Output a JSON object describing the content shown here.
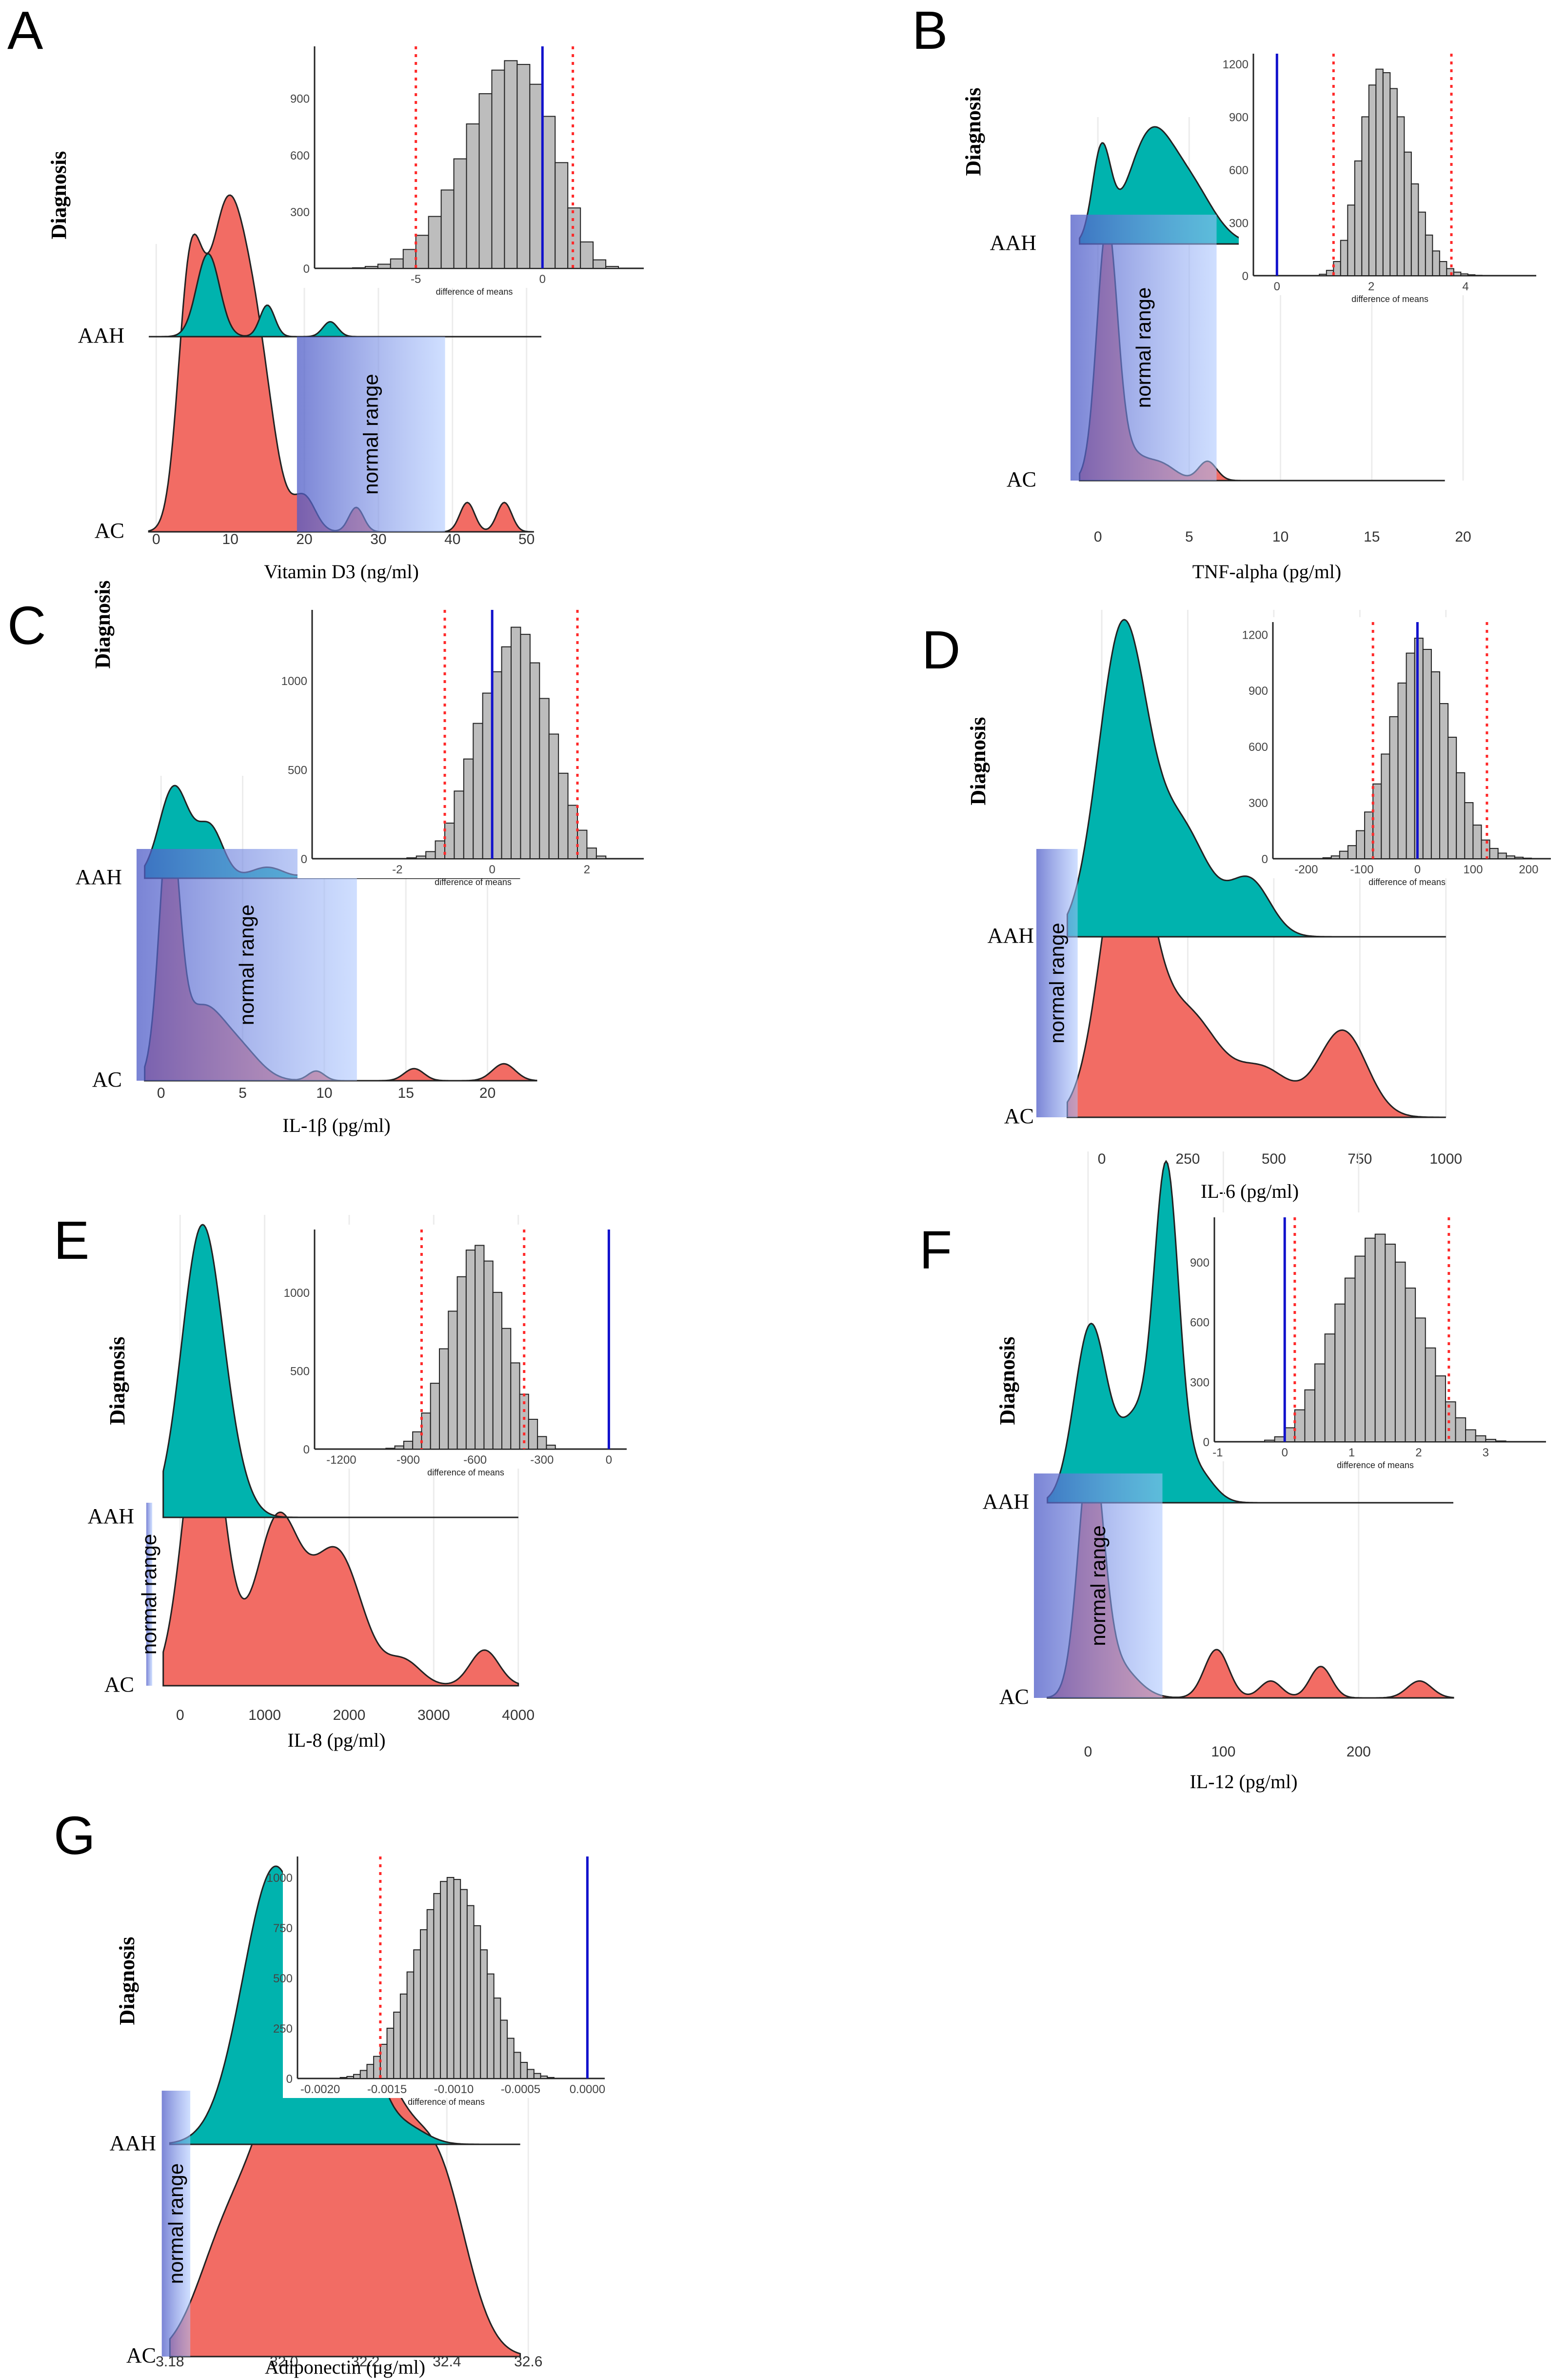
{
  "figure": {
    "y_axis_title": "Diagnosis",
    "group_labels": [
      "AAH",
      "AC"
    ],
    "inset_xlabel": "difference of means",
    "shaded_label": "normal range"
  },
  "colors": {
    "aah_fill": "#00b3ae",
    "ac_fill": "#f26c64",
    "normal_range": "#7f8fe0",
    "observed_line": "#1111cc",
    "ci_line": "#ff2a2a",
    "hist_fill": "#bdbdbd"
  },
  "chart_data": [
    {
      "id": "A",
      "panel_label": "A",
      "type": "area",
      "xlabel": "Vitamin D3 (ng/ml)",
      "xlim": [
        -2,
        52
      ],
      "x_ticks": [
        0,
        10,
        20,
        30,
        40,
        50
      ],
      "normal_range": [
        19,
        39
      ],
      "series": [
        {
          "name": "AAH",
          "bumps": [
            [
              7,
              1.55,
              1.0
            ],
            [
              15,
              1.0,
              0.38
            ],
            [
              23.5,
              1.0,
              0.18
            ]
          ],
          "range": [
            -1,
            52
          ]
        },
        {
          "name": "AC",
          "bumps": [
            [
              4.5,
              1.6,
              0.45
            ],
            [
              9.5,
              2.8,
              0.65
            ],
            [
              14,
              2.2,
              0.25
            ],
            [
              20,
              1.5,
              0.07
            ],
            [
              27,
              1.0,
              0.05
            ],
            [
              42,
              1.0,
              0.06
            ],
            [
              47,
              1.0,
              0.06
            ]
          ],
          "range": [
            -1,
            51
          ]
        }
      ],
      "inset": {
        "type": "histogram",
        "xlabel": "difference of means",
        "x_ticks": [
          -5,
          0
        ],
        "y_ticks": [
          0,
          300,
          600,
          900
        ],
        "xlim": [
          -9,
          4
        ],
        "ylim": [
          0,
          1150
        ],
        "bins": [
          -7.5,
          -7.0,
          -6.5,
          -6.0,
          -5.5,
          -5.0,
          -4.5,
          -4.0,
          -3.5,
          -3.0,
          -2.5,
          -2.0,
          -1.5,
          -1.0,
          -0.5,
          0.0,
          0.5,
          1.0,
          1.5,
          2.0,
          2.5
        ],
        "counts": [
          3,
          10,
          22,
          50,
          100,
          175,
          275,
          415,
          580,
          765,
          925,
          1050,
          1100,
          1080,
          975,
          805,
          560,
          320,
          140,
          45,
          10
        ],
        "bin_width": 0.5,
        "ci": [
          -5,
          1.2
        ],
        "observed": 0
      }
    },
    {
      "id": "B",
      "panel_label": "B",
      "type": "area",
      "xlabel": "TNF-alpha (pg/ml)",
      "xlim": [
        -1.5,
        20
      ],
      "x_ticks": [
        0,
        5,
        10,
        15,
        20
      ],
      "normal_range": [
        -1.5,
        6.5
      ],
      "series": [
        {
          "name": "AAH",
          "bumps": [
            [
              0.2,
              0.5,
              0.9
            ],
            [
              2.8,
              1.2,
              1.0
            ],
            [
              5.0,
              1.3,
              0.55
            ]
          ],
          "range": [
            -1,
            19
          ]
        },
        {
          "name": "AC",
          "bumps": [
            [
              0.5,
              0.55,
              1.0
            ],
            [
              1.5,
              1.0,
              0.12
            ],
            [
              3.5,
              0.8,
              0.06
            ],
            [
              6.0,
              0.5,
              0.08
            ]
          ],
          "range": [
            -1,
            19
          ]
        }
      ],
      "inset": {
        "type": "histogram",
        "xlabel": "difference of means",
        "x_ticks": [
          0,
          2,
          4
        ],
        "y_ticks": [
          0,
          300,
          600,
          900,
          1200
        ],
        "xlim": [
          -0.5,
          5.5
        ],
        "ylim": [
          0,
          1230
        ],
        "bins": [
          0.9,
          1.05,
          1.2,
          1.35,
          1.5,
          1.65,
          1.8,
          1.95,
          2.1,
          2.25,
          2.4,
          2.55,
          2.7,
          2.85,
          3.0,
          3.15,
          3.3,
          3.45,
          3.6,
          3.75,
          3.9,
          4.05,
          4.2
        ],
        "counts": [
          8,
          30,
          80,
          200,
          400,
          650,
          900,
          1080,
          1170,
          1150,
          1060,
          900,
          700,
          520,
          360,
          230,
          140,
          80,
          40,
          20,
          10,
          5,
          2
        ],
        "bin_width": 0.15,
        "ci": [
          1.2,
          3.7
        ],
        "observed": 0
      }
    },
    {
      "id": "C",
      "panel_label": "C",
      "type": "area",
      "xlabel": "IL-1β (pg/ml)",
      "xlim": [
        -1.5,
        23
      ],
      "x_ticks": [
        0,
        5,
        10,
        15,
        20
      ],
      "normal_range": [
        -1.5,
        12
      ],
      "series": [
        {
          "name": "AAH",
          "bumps": [
            [
              0.8,
              0.9,
              1.0
            ],
            [
              3,
              0.8,
              0.55
            ],
            [
              6.5,
              1.0,
              0.12
            ],
            [
              9.5,
              0.6,
              0.08
            ]
          ],
          "range": [
            -1,
            22
          ]
        },
        {
          "name": "AC",
          "bumps": [
            [
              0.5,
              0.6,
              1.0
            ],
            [
              2.5,
              1.4,
              0.3
            ],
            [
              5,
              1.2,
              0.1
            ],
            [
              9.5,
              0.5,
              0.04
            ],
            [
              15.5,
              0.6,
              0.05
            ],
            [
              21,
              0.7,
              0.07
            ]
          ],
          "range": [
            -1,
            23
          ]
        }
      ],
      "inset": {
        "type": "histogram",
        "xlabel": "difference of means",
        "x_ticks": [
          -2,
          0,
          2
        ],
        "y_ticks": [
          0,
          500,
          1000
        ],
        "xlim": [
          -3.8,
          3.2
        ],
        "ylim": [
          0,
          1370
        ],
        "bins": [
          -1.8,
          -1.6,
          -1.4,
          -1.2,
          -1.0,
          -0.8,
          -0.6,
          -0.4,
          -0.2,
          0.0,
          0.2,
          0.4,
          0.6,
          0.8,
          1.0,
          1.2,
          1.4,
          1.6,
          1.8,
          2.0,
          2.2
        ],
        "counts": [
          5,
          15,
          40,
          100,
          200,
          380,
          560,
          760,
          930,
          1050,
          1190,
          1300,
          1260,
          1100,
          900,
          700,
          480,
          300,
          160,
          60,
          15
        ],
        "bin_width": 0.2,
        "ci": [
          -1.0,
          1.8
        ],
        "observed": 0
      }
    },
    {
      "id": "D",
      "panel_label": "D",
      "type": "area",
      "xlabel": "IL-6 (pg/ml)",
      "xlim": [
        -190,
        1050
      ],
      "x_ticks": [
        0,
        250,
        500,
        750,
        1000
      ],
      "normal_range": [
        -190,
        -70
      ],
      "series": [
        {
          "name": "AAH",
          "bumps": [
            [
              60,
              70,
              1.0
            ],
            [
              230,
              80,
              0.35
            ],
            [
              430,
              60,
              0.18
            ]
          ],
          "range": [
            -100,
            1000
          ]
        },
        {
          "name": "AC",
          "bumps": [
            [
              70,
              70,
              1.0
            ],
            [
              250,
              90,
              0.35
            ],
            [
              470,
              80,
              0.16
            ],
            [
              700,
              70,
              0.3
            ]
          ],
          "range": [
            -100,
            1000
          ]
        }
      ],
      "inset": {
        "type": "histogram",
        "xlabel": "difference of means",
        "x_ticks": [
          -200,
          -100,
          0,
          100,
          200
        ],
        "y_ticks": [
          0,
          300,
          600,
          900,
          1200
        ],
        "xlim": [
          -260,
          240
        ],
        "ylim": [
          0,
          1240
        ],
        "bins": [
          -170,
          -155,
          -140,
          -125,
          -110,
          -95,
          -80,
          -65,
          -50,
          -35,
          -20,
          -5,
          10,
          25,
          40,
          55,
          70,
          85,
          100,
          115,
          130,
          145,
          160,
          175,
          190
        ],
        "counts": [
          5,
          15,
          40,
          70,
          150,
          250,
          400,
          560,
          760,
          940,
          1100,
          1180,
          1120,
          1000,
          830,
          650,
          460,
          300,
          180,
          100,
          55,
          30,
          15,
          8,
          3
        ],
        "bin_width": 15,
        "ci": [
          -80,
          125
        ],
        "observed": 0
      }
    },
    {
      "id": "E",
      "panel_label": "E",
      "type": "area",
      "xlabel": "IL-8 (pg/ml)",
      "xlim": [
        -400,
        4100
      ],
      "x_ticks": [
        0,
        1000,
        2000,
        3000,
        4000
      ],
      "normal_range": [
        -400,
        -330
      ],
      "series": [
        {
          "name": "AAH",
          "bumps": [
            [
              260,
              240,
              1.0
            ],
            [
              650,
              200,
              0.07
            ]
          ],
          "range": [
            -200,
            4000
          ]
        },
        {
          "name": "AC",
          "bumps": [
            [
              280,
              230,
              1.0
            ],
            [
              1150,
              260,
              0.55
            ],
            [
              1850,
              300,
              0.45
            ],
            [
              2650,
              200,
              0.08
            ],
            [
              3600,
              170,
              0.12
            ]
          ],
          "range": [
            -200,
            4000
          ]
        }
      ],
      "inset": {
        "type": "histogram",
        "xlabel": "difference of means",
        "x_ticks": [
          -1200,
          -900,
          -600,
          -300,
          0
        ],
        "y_ticks": [
          0,
          500,
          1000
        ],
        "xlim": [
          -1320,
          80
        ],
        "ylim": [
          0,
          1370
        ],
        "bins": [
          -1000,
          -960,
          -920,
          -880,
          -840,
          -800,
          -760,
          -720,
          -680,
          -640,
          -600,
          -560,
          -520,
          -480,
          -440,
          -400,
          -360,
          -320,
          -280
        ],
        "counts": [
          5,
          20,
          50,
          110,
          230,
          420,
          640,
          880,
          1100,
          1270,
          1300,
          1200,
          1000,
          770,
          550,
          350,
          190,
          80,
          25
        ],
        "bin_width": 40,
        "ci": [
          -840,
          -380
        ],
        "observed": 0
      }
    },
    {
      "id": "F",
      "panel_label": "F",
      "type": "area",
      "xlabel": "IL-12 (pg/ml)",
      "xlim": [
        -40,
        270
      ],
      "x_ticks": [
        0,
        100,
        200
      ],
      "normal_range": [
        -40,
        55
      ],
      "series": [
        {
          "name": "AAH",
          "bumps": [
            [
              2,
              12,
              0.55
            ],
            [
              35,
              12,
              0.25
            ],
            [
              58,
              9,
              1.0
            ],
            [
              80,
              12,
              0.1
            ]
          ],
          "range": [
            -30,
            270
          ]
        },
        {
          "name": "AC",
          "bumps": [
            [
              2,
              9,
              1.0
            ],
            [
              20,
              15,
              0.14
            ],
            [
              95,
              9,
              0.2
            ],
            [
              135,
              8,
              0.07
            ],
            [
              172,
              8,
              0.13
            ],
            [
              245,
              9,
              0.07
            ]
          ],
          "range": [
            -30,
            270
          ]
        }
      ],
      "inset": {
        "type": "histogram",
        "xlabel": "difference of means",
        "x_ticks": [
          -1,
          0,
          1,
          2,
          3
        ],
        "y_ticks": [
          0,
          300,
          600,
          900
        ],
        "xlim": [
          -1.05,
          3.9
        ],
        "ylim": [
          0,
          1100
        ],
        "bins": [
          -0.3,
          -0.15,
          0.0,
          0.15,
          0.3,
          0.45,
          0.6,
          0.75,
          0.9,
          1.05,
          1.2,
          1.35,
          1.5,
          1.65,
          1.8,
          1.95,
          2.1,
          2.25,
          2.4,
          2.55,
          2.7,
          2.85,
          3.0,
          3.15
        ],
        "counts": [
          8,
          25,
          70,
          160,
          260,
          390,
          540,
          690,
          820,
          930,
          1020,
          1040,
          990,
          900,
          770,
          620,
          470,
          330,
          200,
          120,
          60,
          30,
          12,
          4
        ],
        "bin_width": 0.15,
        "ci": [
          0.15,
          2.45
        ],
        "observed": 0
      }
    },
    {
      "id": "G",
      "panel_label": "G",
      "type": "area",
      "xlabel": "Adiponectin (μg/ml)",
      "xlim": [
        31.68,
        32.62
      ],
      "x_ticks": [
        32.0,
        32.2,
        32.4,
        32.6
      ],
      "x_tick_labels": [
        "32.0",
        "32.2",
        "32.4",
        "32.6"
      ],
      "extra_tick": {
        "label": "3.18",
        "value": 31.72
      },
      "normal_range": [
        31.7,
        31.77
      ],
      "series": [
        {
          "name": "AAH",
          "bumps": [
            [
              31.98,
              0.08,
              1.0
            ],
            [
              32.18,
              0.05,
              0.42
            ],
            [
              32.3,
              0.05,
              0.06
            ]
          ],
          "range": [
            31.72,
            32.58
          ]
        },
        {
          "name": "AC",
          "bumps": [
            [
              31.85,
              0.07,
              0.3
            ],
            [
              32.02,
              0.09,
              0.92
            ],
            [
              32.22,
              0.08,
              0.85
            ],
            [
              32.38,
              0.07,
              0.55
            ]
          ],
          "range": [
            31.72,
            32.58
          ]
        }
      ],
      "inset": {
        "type": "histogram",
        "xlabel": "difference of means",
        "x_ticks": [
          -0.002,
          -0.0015,
          -0.001,
          -0.0005,
          0.0
        ],
        "x_tick_labels": [
          "-0.0020",
          "-0.0015",
          "-0.0010",
          "-0.0005",
          "0.0000"
        ],
        "y_ticks": [
          0,
          250,
          500,
          750,
          1000
        ],
        "xlim": [
          -0.00217,
          0.00013
        ],
        "ylim": [
          0,
          1080
        ],
        "bins": [
          -0.00185,
          -0.0018,
          -0.00175,
          -0.0017,
          -0.00165,
          -0.0016,
          -0.00155,
          -0.0015,
          -0.00145,
          -0.0014,
          -0.00135,
          -0.0013,
          -0.00125,
          -0.0012,
          -0.00115,
          -0.0011,
          -0.00105,
          -0.001,
          -0.00095,
          -0.0009,
          -0.00085,
          -0.0008,
          -0.00075,
          -0.0007,
          -0.00065,
          -0.0006,
          -0.00055,
          -0.0005,
          -0.00045,
          -0.0004,
          -0.00035,
          -0.0003
        ],
        "counts": [
          5,
          10,
          20,
          40,
          70,
          110,
          170,
          250,
          330,
          420,
          530,
          640,
          740,
          840,
          920,
          980,
          1000,
          990,
          940,
          860,
          760,
          640,
          520,
          400,
          290,
          200,
          130,
          80,
          45,
          25,
          12,
          5
        ],
        "bin_width": 5e-05,
        "ci": [
          -0.00155,
          null
        ],
        "observed": 0
      }
    }
  ]
}
